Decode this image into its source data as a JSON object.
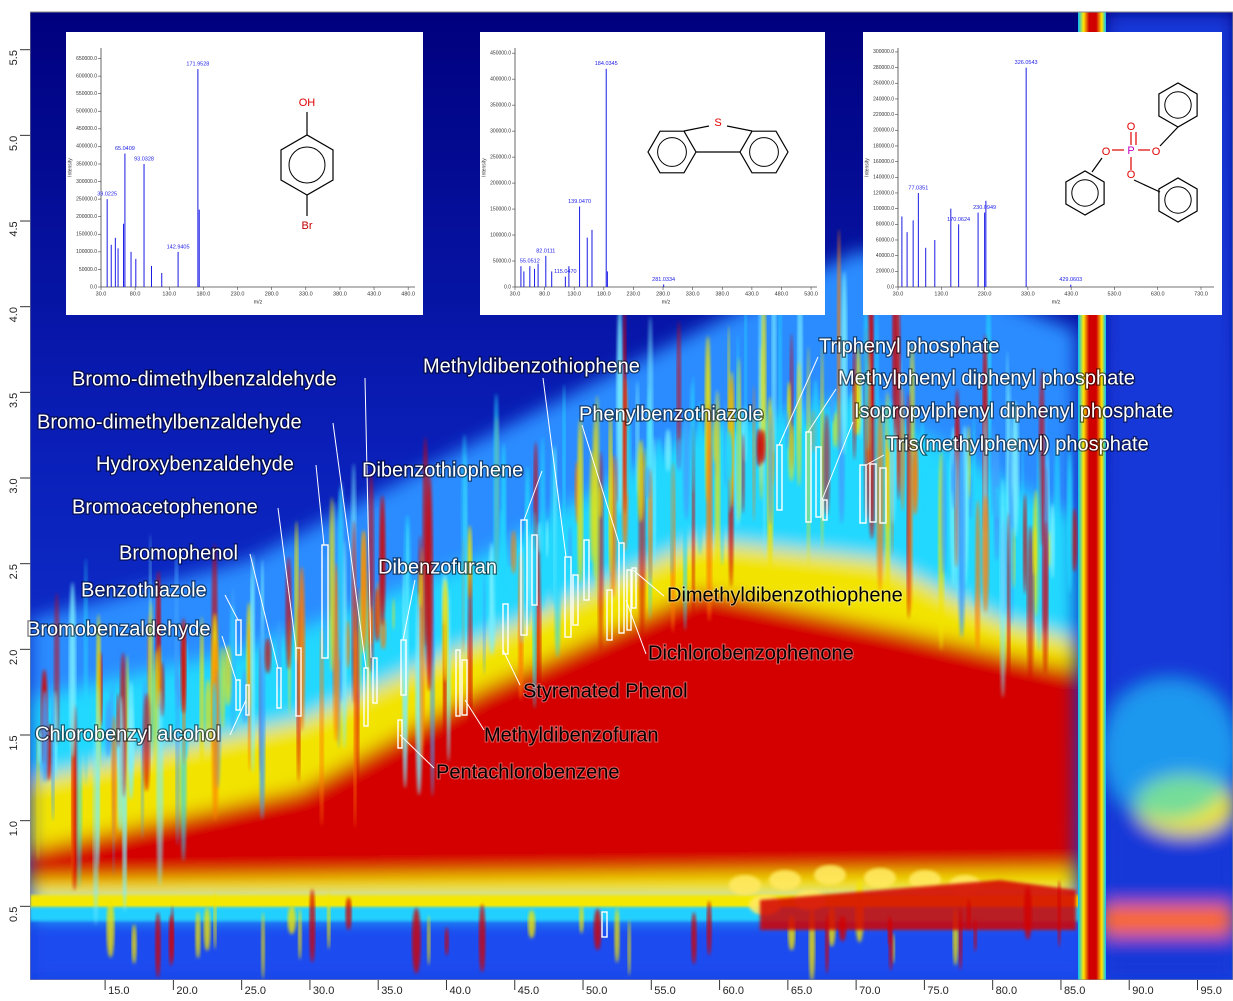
{
  "chart_data": [
    {
      "type": "contour",
      "xlim": [
        9.5,
        97.6
      ],
      "ylim": [
        0.07,
        5.72
      ],
      "xticks": [
        {
          "value": 15,
          "label": "15.0"
        },
        {
          "value": 20,
          "label": "20.0"
        },
        {
          "value": 25,
          "label": "25.0"
        },
        {
          "value": 30,
          "label": "30.0"
        },
        {
          "value": 35,
          "label": "35.0"
        },
        {
          "value": 40,
          "label": "40.0"
        },
        {
          "value": 45,
          "label": "45.0"
        },
        {
          "value": 50,
          "label": "50.0"
        },
        {
          "value": 55,
          "label": "55.0"
        },
        {
          "value": 60,
          "label": "60.0"
        },
        {
          "value": 65,
          "label": "65.0"
        },
        {
          "value": 70,
          "label": "70.0"
        },
        {
          "value": 75,
          "label": "75.0"
        },
        {
          "value": 80,
          "label": "80.0"
        },
        {
          "value": 85,
          "label": "85.0"
        },
        {
          "value": 90,
          "label": "90.0"
        },
        {
          "value": 95,
          "label": "95.0"
        }
      ],
      "yticks": [
        {
          "value": 0.5,
          "label": "0.5"
        },
        {
          "value": 1,
          "label": "1.0"
        },
        {
          "value": 1.5,
          "label": "1.5"
        },
        {
          "value": 2,
          "label": "2.0"
        },
        {
          "value": 2.5,
          "label": "2.5"
        },
        {
          "value": 3,
          "label": "3.0"
        },
        {
          "value": 3.5,
          "label": "3.5"
        },
        {
          "value": 4,
          "label": "4.0"
        },
        {
          "value": 4.5,
          "label": "4.5"
        },
        {
          "value": 5,
          "label": "5.0"
        },
        {
          "value": 5.5,
          "label": "5.5"
        }
      ],
      "annotations": [
        "Bromo-dimethylbenzaldehyde",
        "Bromo-dimethylbenzaldehyde",
        "Hydroxybenzaldehyde",
        "Bromoacetophenone",
        "Bromophenol",
        "Benzothiazole",
        "Bromobenzaldehyde",
        "Chlorobenzyl alcohol",
        "Dibenzothiophene",
        "Dibenzofuran",
        "Methyldibenzothiophene",
        "Phenylbenzothiazole",
        "Triphenyl phosphate",
        "Methylphenyl diphenyl phosphate",
        "Isopropylphenyl diphenyl phosphate",
        "Tris(methylphenyl) phosphate",
        "Dimethyldibenzothiophene",
        "Dichlorobenzophenone",
        "Styrenated Phenol",
        "Methyldibenzofuran",
        "Pentachlorobenzene"
      ]
    },
    {
      "type": "spectrum",
      "xlabel": "m/z",
      "ylabel": "Intensity",
      "xlim": [
        30,
        490
      ],
      "ylim": [
        0,
        680000
      ],
      "xticks": [
        {
          "value": 30,
          "label": "30.0"
        },
        {
          "value": 80,
          "label": "80.0"
        },
        {
          "value": 130,
          "label": "130.0"
        },
        {
          "value": 180,
          "label": "180.0"
        },
        {
          "value": 230,
          "label": "230.0"
        },
        {
          "value": 280,
          "label": "280.0"
        },
        {
          "value": 330,
          "label": "330.0"
        },
        {
          "value": 380,
          "label": "380.0"
        },
        {
          "value": 430,
          "label": "430.0"
        },
        {
          "value": 480,
          "label": "480.0"
        }
      ],
      "yticks": [
        {
          "value": 0,
          "label": "0.0"
        },
        {
          "value": 50000,
          "label": "50000.0"
        },
        {
          "value": 100000,
          "label": "100000.0"
        },
        {
          "value": 150000,
          "label": "150000.0"
        },
        {
          "value": 200000,
          "label": "200000.0"
        },
        {
          "value": 250000,
          "label": "250000.0"
        },
        {
          "value": 300000,
          "label": "300000.0"
        },
        {
          "value": 350000,
          "label": "350000.0"
        },
        {
          "value": 400000,
          "label": "400000.0"
        },
        {
          "value": 450000,
          "label": "450000.0"
        },
        {
          "value": 500000,
          "label": "500000.0"
        },
        {
          "value": 550000,
          "label": "550000.0"
        },
        {
          "value": 600000,
          "label": "600000.0"
        },
        {
          "value": 650000,
          "label": "650000.0"
        }
      ],
      "x": [
        39.0225,
        45,
        51,
        55,
        63,
        65.0409,
        74,
        81,
        93.0328,
        104,
        119,
        142.9405,
        171.9528,
        173.9
      ],
      "values": [
        250000,
        120000,
        140000,
        110000,
        180000,
        380000,
        100000,
        80000,
        350000,
        60000,
        40000,
        100000,
        620000,
        220000
      ],
      "value_labels": [
        "39.0225",
        null,
        null,
        null,
        null,
        "65.0409",
        null,
        null,
        "93.0328",
        null,
        null,
        "142.9405",
        "171.9528",
        null
      ],
      "structure": [
        "OH",
        "Br"
      ]
    },
    {
      "type": "spectrum",
      "xlabel": "m/z",
      "ylabel": "Intensity",
      "xlim": [
        30,
        540
      ],
      "ylim": [
        0,
        460000
      ],
      "xticks": [
        {
          "value": 30,
          "label": "30.0"
        },
        {
          "value": 80,
          "label": "80.0"
        },
        {
          "value": 130,
          "label": "130.0"
        },
        {
          "value": 180,
          "label": "180.0"
        },
        {
          "value": 230,
          "label": "230.0"
        },
        {
          "value": 280,
          "label": "280.0"
        },
        {
          "value": 330,
          "label": "330.0"
        },
        {
          "value": 380,
          "label": "380.0"
        },
        {
          "value": 430,
          "label": "430.0"
        },
        {
          "value": 480,
          "label": "480.0"
        },
        {
          "value": 530,
          "label": "530.0"
        }
      ],
      "yticks": [
        {
          "value": 0,
          "label": "0.0"
        },
        {
          "value": 50000,
          "label": "50000.0"
        },
        {
          "value": 100000,
          "label": "100000.0"
        },
        {
          "value": 150000,
          "label": "150000.0"
        },
        {
          "value": 200000,
          "label": "200000.0"
        },
        {
          "value": 250000,
          "label": "250000.0"
        },
        {
          "value": 300000,
          "label": "300000.0"
        },
        {
          "value": 350000,
          "label": "350000.0"
        },
        {
          "value": 400000,
          "label": "400000.0"
        },
        {
          "value": 450000,
          "label": "450000.0"
        }
      ],
      "x": [
        40,
        45,
        55.0512,
        63,
        69,
        82.0111,
        92,
        115.047,
        121,
        139.047,
        152,
        160,
        184.0345,
        186,
        281.0334
      ],
      "values": [
        40000,
        30000,
        40000,
        35000,
        45000,
        60000,
        30000,
        20000,
        40000,
        155000,
        95000,
        110000,
        420000,
        30000,
        5000
      ],
      "value_labels": [
        null,
        null,
        "55.0512",
        null,
        null,
        "82.0111",
        null,
        "115.0470",
        null,
        "139.0470",
        null,
        null,
        "184.0345",
        null,
        "281.0334"
      ],
      "structure": [
        "S"
      ]
    },
    {
      "type": "spectrum",
      "xlabel": "m/z",
      "ylabel": "Intensity",
      "xlim": [
        30,
        760
      ],
      "ylim": [
        0,
        305000
      ],
      "xticks": [
        {
          "value": 30,
          "label": "30.0"
        },
        {
          "value": 130,
          "label": "130.0"
        },
        {
          "value": 230,
          "label": "230.0"
        },
        {
          "value": 330,
          "label": "330.0"
        },
        {
          "value": 430,
          "label": "430.0"
        },
        {
          "value": 530,
          "label": "530.0"
        },
        {
          "value": 630,
          "label": "630.0"
        },
        {
          "value": 730,
          "label": "730.0"
        }
      ],
      "yticks": [
        {
          "value": 0,
          "label": "0.0"
        },
        {
          "value": 20000,
          "label": "20000.0"
        },
        {
          "value": 40000,
          "label": "40000.0"
        },
        {
          "value": 60000,
          "label": "60000.0"
        },
        {
          "value": 80000,
          "label": "80000.0"
        },
        {
          "value": 100000,
          "label": "100000.0"
        },
        {
          "value": 120000,
          "label": "120000.0"
        },
        {
          "value": 140000,
          "label": "140000.0"
        },
        {
          "value": 160000,
          "label": "160000.0"
        },
        {
          "value": 180000,
          "label": "180000.0"
        },
        {
          "value": 200000,
          "label": "200000.0"
        },
        {
          "value": 220000,
          "label": "220000.0"
        },
        {
          "value": 240000,
          "label": "240000.0"
        },
        {
          "value": 260000,
          "label": "260000.0"
        },
        {
          "value": 280000,
          "label": "280000.0"
        },
        {
          "value": 300000,
          "label": "300000.0"
        }
      ],
      "x": [
        39,
        51,
        65,
        77.0351,
        94,
        115,
        152,
        170.0624,
        215,
        230.0949,
        233,
        326.0543,
        429.0603
      ],
      "values": [
        90000,
        70000,
        85000,
        120000,
        50000,
        60000,
        100000,
        80000,
        95000,
        95000,
        110000,
        280000,
        3000
      ],
      "value_labels": [
        null,
        null,
        null,
        "77.0351",
        null,
        null,
        null,
        "170.0624",
        null,
        "230.0949",
        null,
        "326.0543",
        "429.0603"
      ],
      "structure": [
        "O",
        "P",
        "O",
        "O",
        "O"
      ]
    }
  ]
}
